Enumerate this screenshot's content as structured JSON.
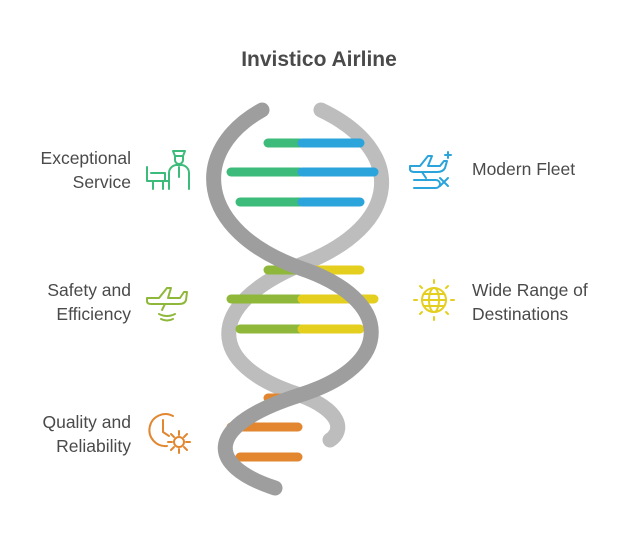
{
  "title": "Invistico Airline",
  "colors": {
    "backbone": "#a3a3a3",
    "green": "#3dbb7a",
    "blue": "#2ba3db",
    "lime": "#8fb83a",
    "yellow": "#e4cf1f",
    "orange": "#e2862f",
    "text": "#4a4a4a"
  },
  "items": [
    {
      "lines": [
        "Exceptional",
        "Service"
      ],
      "icon": "flight-attendant-icon",
      "color": "#3dbb7a"
    },
    {
      "lines": [
        "Modern Fleet"
      ],
      "icon": "airplane-flight-icon",
      "color": "#2ba3db"
    },
    {
      "lines": [
        "Safety and",
        "Efficiency"
      ],
      "icon": "airplane-landing-icon",
      "color": "#8fb83a"
    },
    {
      "lines": [
        "Wide Range of",
        "Destinations"
      ],
      "icon": "globe-icon",
      "color": "#e4cf1f"
    },
    {
      "lines": [
        "Quality and",
        "Reliability"
      ],
      "icon": "clock-gear-icon",
      "color": "#e2862f"
    }
  ]
}
